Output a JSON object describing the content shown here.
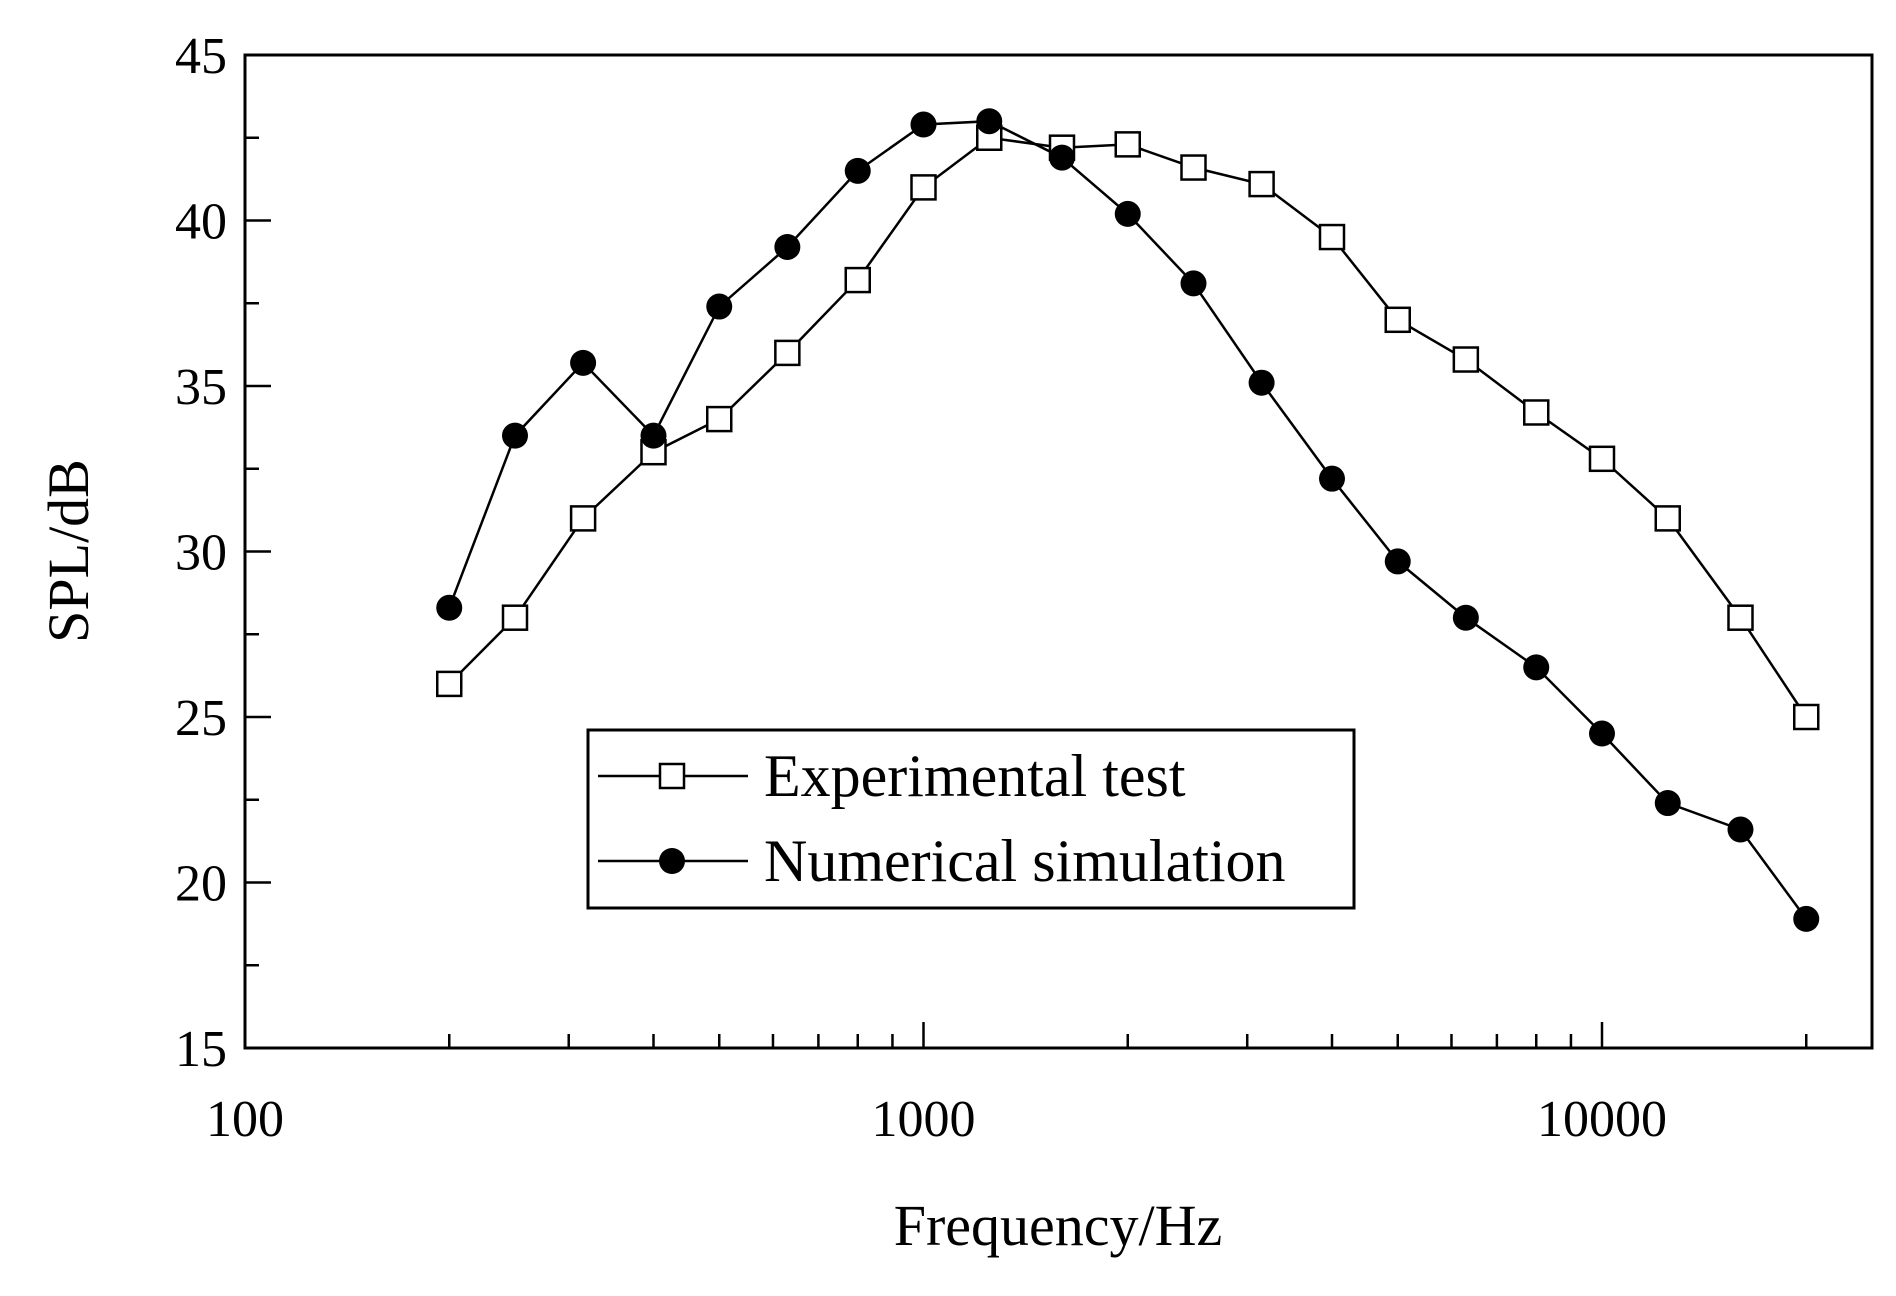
{
  "chart_data": {
    "type": "line",
    "title": "",
    "xlabel": "Frequency/Hz",
    "ylabel": "SPL/dB",
    "xscale": "log",
    "xlim": [
      100,
      25000
    ],
    "ylim": [
      15,
      45
    ],
    "x_ticks": [
      100,
      1000,
      10000
    ],
    "x_tick_labels": [
      "100",
      "1000",
      "10000"
    ],
    "y_ticks": [
      15,
      20,
      25,
      30,
      35,
      40,
      45
    ],
    "y_tick_labels": [
      "15",
      "20",
      "25",
      "30",
      "35",
      "40",
      "45"
    ],
    "grid": false,
    "legend_position": "lower-center",
    "x": [
      200,
      250,
      315,
      400,
      500,
      630,
      800,
      1000,
      1250,
      1600,
      2000,
      2500,
      3150,
      4000,
      5000,
      6300,
      8000,
      10000,
      12500,
      16000,
      20000
    ],
    "series": [
      {
        "name": "Experimental test",
        "marker": "open-square",
        "color": "#000000",
        "values": [
          26.0,
          28.0,
          31.0,
          33.0,
          34.0,
          36.0,
          38.2,
          41.0,
          42.5,
          42.2,
          42.3,
          41.6,
          41.1,
          39.5,
          37.0,
          35.8,
          34.2,
          32.8,
          31.0,
          28.0,
          25.0
        ]
      },
      {
        "name": "Numerical simulation",
        "marker": "filled-circle",
        "color": "#000000",
        "values": [
          28.3,
          33.5,
          35.7,
          33.5,
          37.4,
          39.2,
          41.5,
          42.9,
          43.0,
          41.9,
          40.2,
          38.1,
          35.1,
          32.2,
          29.7,
          28.0,
          26.5,
          24.5,
          22.4,
          21.6,
          18.9
        ]
      }
    ]
  }
}
